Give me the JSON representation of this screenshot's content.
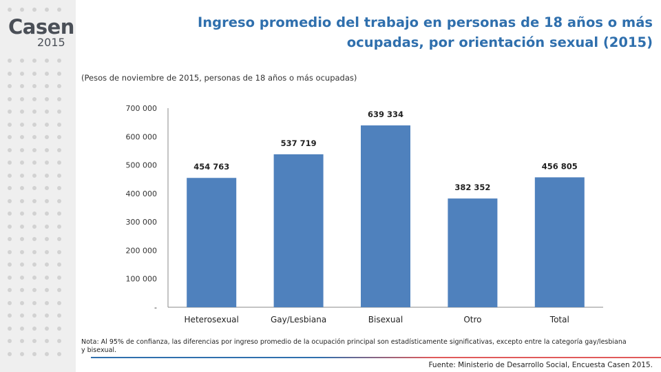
{
  "logo": {
    "word": "Casen",
    "year": "2015"
  },
  "title_line1": "Ingreso promedio del trabajo en personas de 18 años o más",
  "title_line2": "ocupadas, por orientación sexual (2015)",
  "subtitle": "(Pesos de noviembre de 2015, personas de 18 años o más ocupadas)",
  "note": "Nota: Al 95% de confianza, las diferencias por ingreso promedio de la ocupación principal son estadísticamente significativas, excepto entre la categoría gay/lesbiana y bisexual.",
  "source": "Fuente: Ministerio de Desarrollo Social, Encuesta Casen 2015.",
  "colors": {
    "bar": "#4f81bd",
    "title": "#2f6fad",
    "sidebar": "#efefef"
  },
  "chart_data": {
    "type": "bar",
    "categories": [
      "Heterosexual",
      "Gay/Lesbiana",
      "Bisexual",
      "Otro",
      "Total"
    ],
    "values": [
      454763,
      537719,
      639334,
      382352,
      456805
    ],
    "value_labels": [
      "454 763",
      "537 719",
      "639 334",
      "382 352",
      "456 805"
    ],
    "ylim": [
      0,
      700000
    ],
    "yticks": [
      0,
      100000,
      200000,
      300000,
      400000,
      500000,
      600000,
      700000
    ],
    "ytick_labels": [
      "-",
      "100 000",
      "200 000",
      "300 000",
      "400 000",
      "500 000",
      "600 000",
      "700 000"
    ],
    "grid": false,
    "legend": "none"
  }
}
